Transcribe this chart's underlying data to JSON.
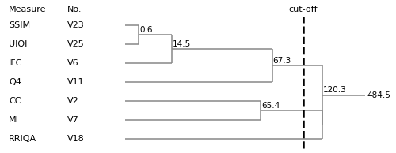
{
  "measures": [
    "SSIM",
    "UIQI",
    "IFC",
    "Q4",
    "CC",
    "MI",
    "RRIQA"
  ],
  "numbers": [
    "V23",
    "V25",
    "V6",
    "V11",
    "V2",
    "V7",
    "V18"
  ],
  "fig_width": 5.0,
  "fig_height": 1.94,
  "dpi": 100,
  "line_color": "#888888",
  "cutoff_label": "cut-off",
  "header_measure": "Measure",
  "header_no": "No.",
  "x_leaf": 0,
  "x_merge_0_6": 18,
  "x_merge_14_5": 60,
  "x_merge_67_3": 190,
  "x_merge_65_4": 175,
  "x_merge_120_3": 255,
  "x_cutoff": 230,
  "x_484_5": 310,
  "x_measure": -150,
  "x_no": -75,
  "label_0_6": "0.6",
  "label_14_5": "14.5",
  "label_67_3": "67.3",
  "label_65_4": "65.4",
  "label_120_3": "120.3",
  "label_484_5": "484.5",
  "xlim": [
    -160,
    340
  ],
  "ylim": [
    -0.7,
    7.3
  ]
}
